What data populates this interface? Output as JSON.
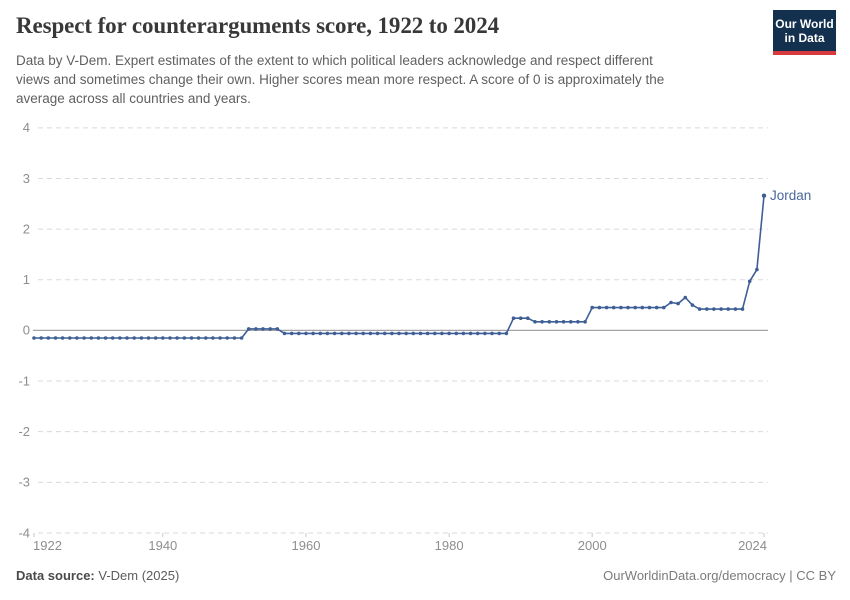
{
  "header": {
    "title": "Respect for counterarguments score, 1922 to 2024",
    "logo": {
      "line1": "Our World",
      "line2": "in Data"
    },
    "subtitle_lines": [
      "Data by V-Dem. Expert estimates of the extent to which political leaders acknowledge and respect different",
      "views and sometimes change their own. Higher scores mean more respect. A score of 0 is approximately the",
      "average across all countries and years."
    ]
  },
  "footer": {
    "source_label": "Data source:",
    "source_value": "V-Dem (2025)",
    "credit": "OurWorldinData.org/democracy | CC BY"
  },
  "colors": {
    "line": "#3e5f96",
    "entity_label": "#4a679c",
    "grid": "#dadada",
    "zero_line": "#a3a3a3",
    "axis_text": "#8e8e8e",
    "tick_mark": "#c8c8c8",
    "logo_bg": "#14304f",
    "logo_red": "#d73a3e"
  },
  "chart_data": {
    "type": "line",
    "title": "Respect for counterarguments score, 1922 to 2024",
    "entity_label": "Jordan",
    "xlabel": "",
    "ylabel": "",
    "ylim": [
      -4,
      4
    ],
    "yticks": [
      4,
      3,
      2,
      1,
      0,
      -1,
      -2,
      -3,
      -4
    ],
    "xticks": [
      1922,
      1940,
      1960,
      1980,
      2000,
      2024
    ],
    "grid": "dashed-horizontal",
    "legend_position": "end-of-line",
    "start_year": 1922,
    "end_year": 2024,
    "series": [
      {
        "name": "Jordan",
        "values": [
          -0.15,
          -0.15,
          -0.15,
          -0.15,
          -0.15,
          -0.15,
          -0.15,
          -0.15,
          -0.15,
          -0.15,
          -0.15,
          -0.15,
          -0.15,
          -0.15,
          -0.15,
          -0.15,
          -0.15,
          -0.15,
          -0.15,
          -0.15,
          -0.15,
          -0.15,
          -0.15,
          -0.15,
          -0.15,
          -0.15,
          -0.15,
          -0.15,
          -0.15,
          -0.15,
          0.03,
          0.03,
          0.03,
          0.03,
          0.03,
          -0.06,
          -0.06,
          -0.06,
          -0.06,
          -0.06,
          -0.06,
          -0.06,
          -0.06,
          -0.06,
          -0.06,
          -0.06,
          -0.06,
          -0.06,
          -0.06,
          -0.06,
          -0.06,
          -0.06,
          -0.06,
          -0.06,
          -0.06,
          -0.06,
          -0.06,
          -0.06,
          -0.06,
          -0.06,
          -0.06,
          -0.06,
          -0.06,
          -0.06,
          -0.06,
          -0.06,
          -0.06,
          0.24,
          0.24,
          0.24,
          0.17,
          0.17,
          0.17,
          0.17,
          0.17,
          0.17,
          0.17,
          0.17,
          0.45,
          0.45,
          0.45,
          0.45,
          0.45,
          0.45,
          0.45,
          0.45,
          0.45,
          0.45,
          0.45,
          0.55,
          0.53,
          0.65,
          0.5,
          0.42,
          0.42,
          0.42,
          0.42,
          0.42,
          0.42,
          0.42,
          0.97,
          1.2,
          2.66
        ]
      }
    ]
  }
}
